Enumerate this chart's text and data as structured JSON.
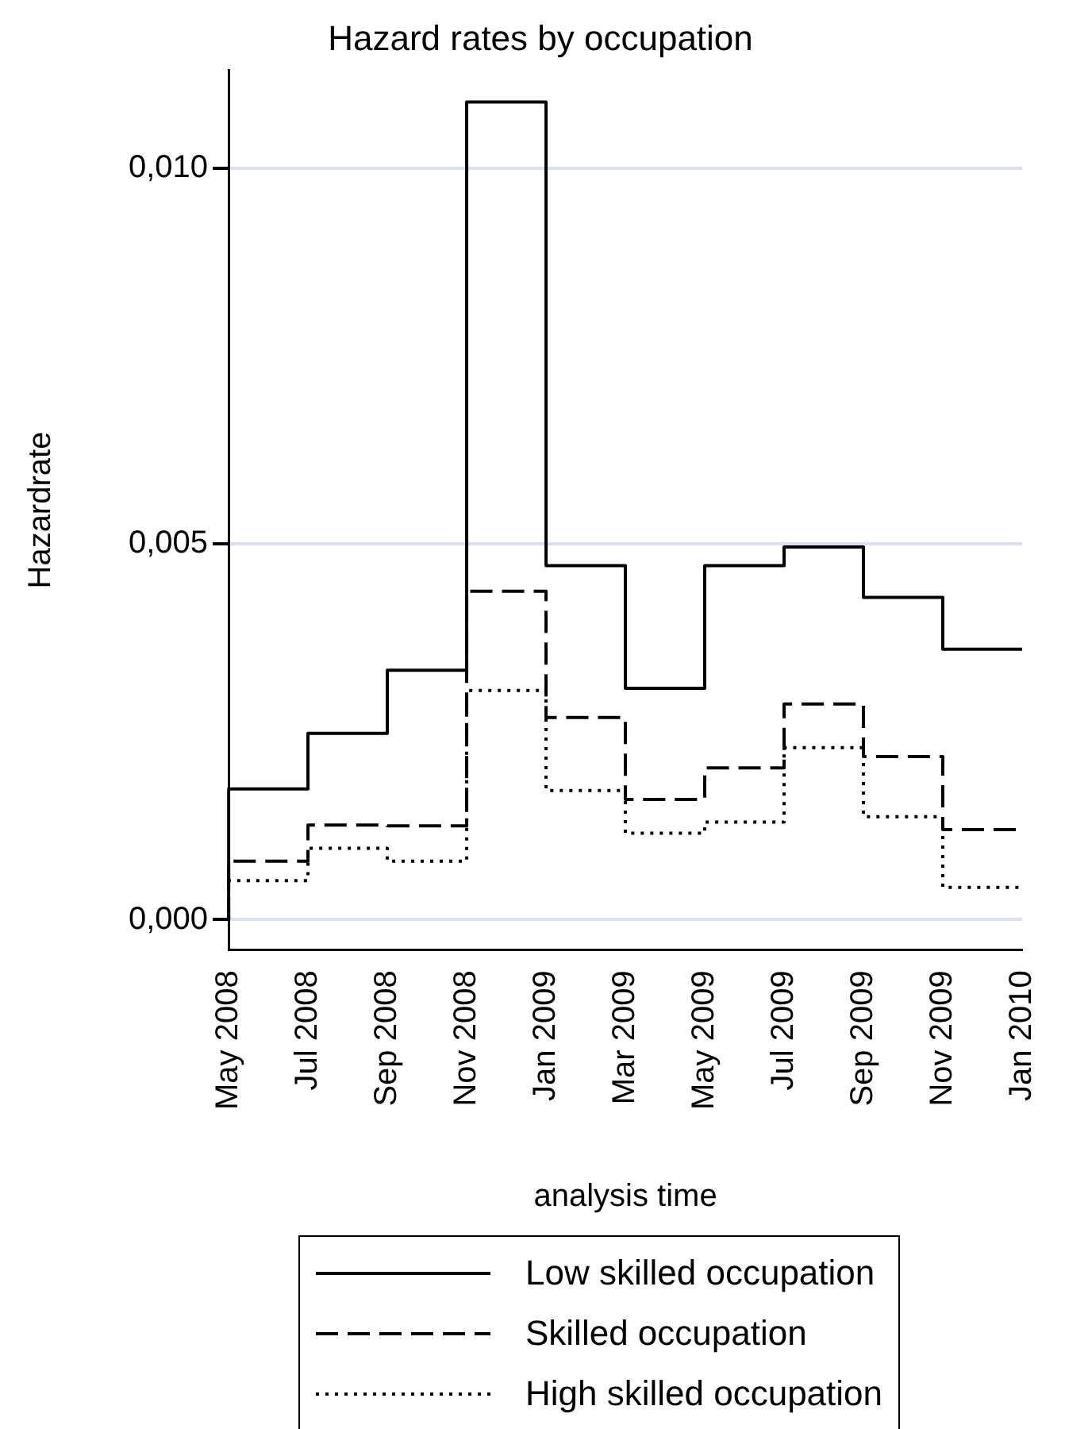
{
  "chart_data": {
    "type": "step",
    "title": "Hazard rates by occupation",
    "xlabel": "analysis time",
    "ylabel": "Hazardrate",
    "categories": [
      "May 2008",
      "Jul 2008",
      "Sep 2008",
      "Nov 2008",
      "Jan 2009",
      "Mar 2009",
      "May 2009",
      "Jul 2009",
      "Sep 2009",
      "Nov 2009",
      "Jan 2010"
    ],
    "series": [
      {
        "name": "Low skilled occupation",
        "color": "#000000",
        "line_style": "solid",
        "values": [
          0,
          0.00174,
          0.00248,
          0.00332,
          0.01088,
          0.00471,
          0.00308,
          0.00471,
          0.00496,
          0.00429,
          0.0036
        ]
      },
      {
        "name": "Skilled occupation",
        "color": "#000000",
        "line_style": "dashed",
        "values": [
          0,
          0.00078,
          0.00126,
          0.00125,
          0.00437,
          0.00269,
          0.0016,
          0.00202,
          0.00287,
          0.00217,
          0.0012
        ]
      },
      {
        "name": "High skilled occupation",
        "color": "#000000",
        "line_style": "dotted",
        "values": [
          0,
          0.00052,
          0.00095,
          0.00078,
          0.00305,
          0.00172,
          0.00115,
          0.0013,
          0.00229,
          0.00137,
          0.00043
        ]
      }
    ],
    "ylim": [
      -0.0004,
      0.0113
    ],
    "yticks": [
      {
        "value": 0,
        "label": "0,000"
      },
      {
        "value": 0.005,
        "label": "0,005"
      },
      {
        "value": 0.01,
        "label": "0,010"
      }
    ],
    "grid": "y",
    "legend": "bottom",
    "marker": "none"
  }
}
